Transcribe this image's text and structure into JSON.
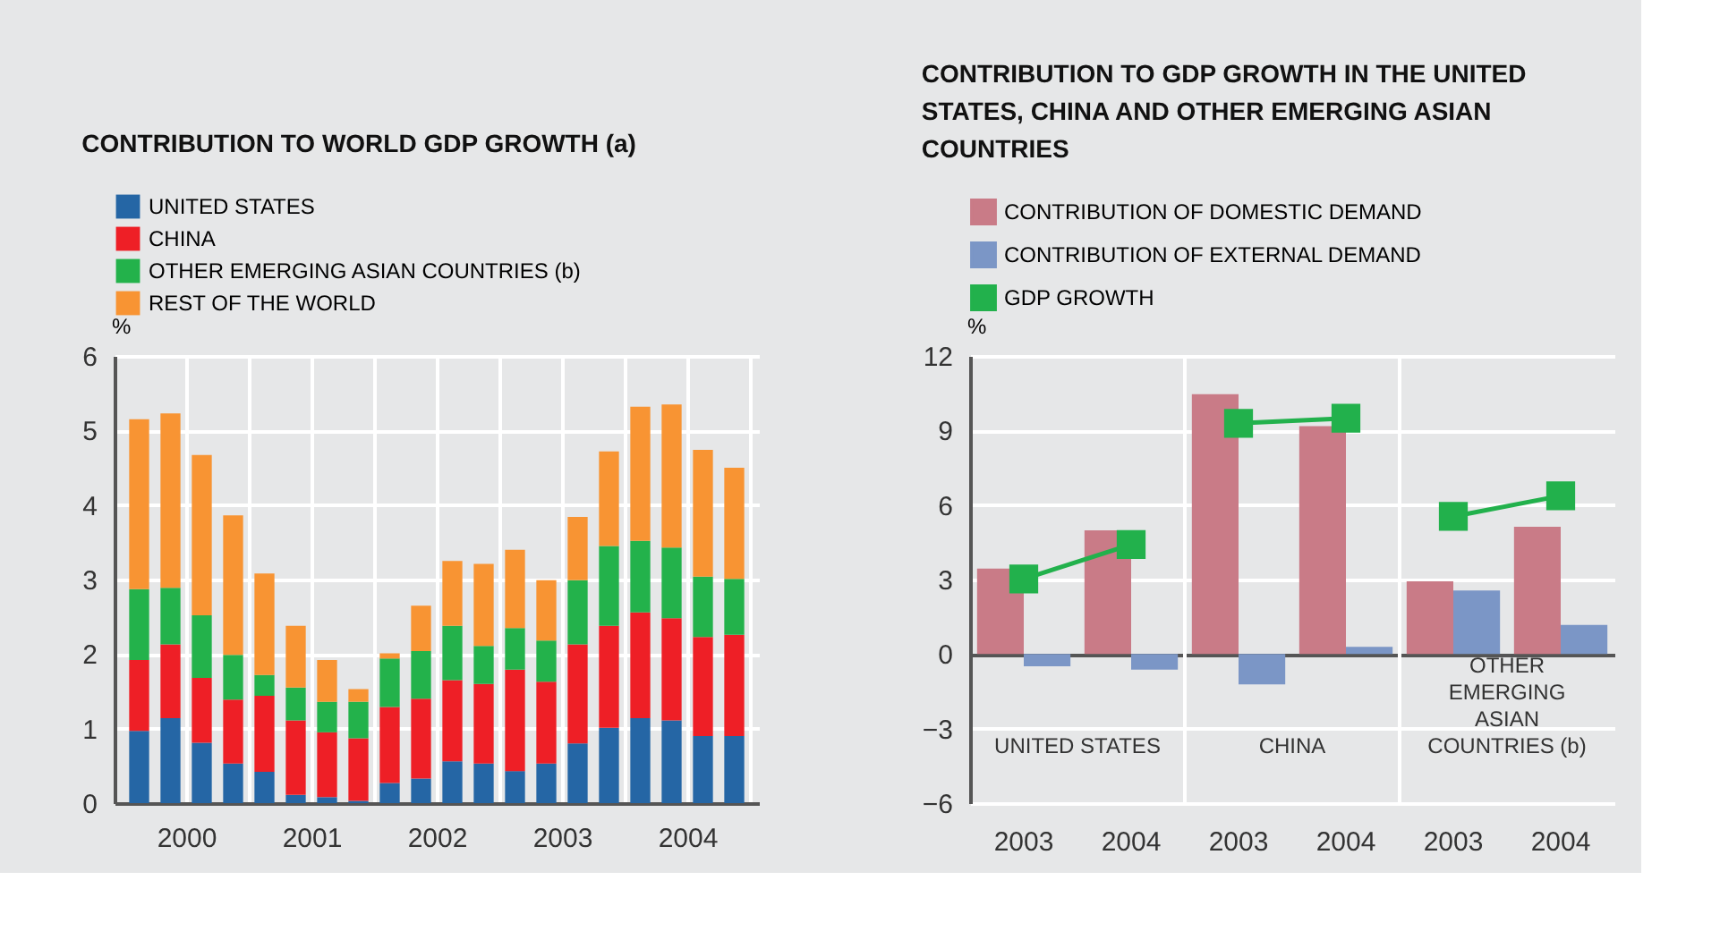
{
  "chart_data": [
    {
      "type": "bar",
      "stacked": true,
      "title": "CONTRIBUTION TO WORLD GDP GROWTH (a)",
      "ylabel": "%",
      "x": [
        2000.125,
        2000.375,
        2000.625,
        2000.875,
        2001.125,
        2001.375,
        2001.625,
        2001.875,
        2002.125,
        2002.375,
        2002.625,
        2002.875,
        2003.125,
        2003.375,
        2003.625,
        2003.875,
        2004.125,
        2004.375,
        2004.625,
        2004.875
      ],
      "series": [
        {
          "name": "UNITED STATES",
          "color": "#2566a5",
          "values": [
            0.97,
            1.14,
            0.81,
            0.53,
            0.42,
            0.11,
            0.08,
            0.03,
            0.27,
            0.33,
            0.56,
            0.53,
            0.43,
            0.53,
            0.8,
            1.01,
            1.14,
            1.11,
            0.9,
            0.9
          ]
        },
        {
          "name": "CHINA",
          "color": "#ee1f26",
          "values": [
            0.95,
            0.99,
            0.87,
            0.86,
            1.02,
            1.0,
            0.87,
            0.84,
            1.02,
            1.07,
            1.09,
            1.07,
            1.36,
            1.1,
            1.33,
            1.37,
            1.42,
            1.37,
            1.33,
            1.36
          ]
        },
        {
          "name": "OTHER EMERGING ASIAN COUNTRIES (b)",
          "color": "#23b24b",
          "values": [
            0.95,
            0.76,
            0.84,
            0.6,
            0.28,
            0.44,
            0.41,
            0.49,
            0.65,
            0.64,
            0.73,
            0.51,
            0.56,
            0.55,
            0.86,
            1.07,
            0.96,
            0.95,
            0.81,
            0.75
          ]
        },
        {
          "name": "REST OF THE WORLD",
          "color": "#f89433",
          "values": [
            2.28,
            2.34,
            2.15,
            1.87,
            1.36,
            0.83,
            0.56,
            0.17,
            0.07,
            0.61,
            0.87,
            1.1,
            1.05,
            0.81,
            0.85,
            1.27,
            1.8,
            1.92,
            1.7,
            1.49
          ]
        }
      ],
      "xlim": [
        2000,
        2005
      ],
      "xticks": [
        {
          "value": 2000.5,
          "label": "2000"
        },
        {
          "value": 2001,
          "label": null
        },
        {
          "value": 2001.5,
          "label": "2001"
        },
        {
          "value": 2002,
          "label": null
        },
        {
          "value": 2002.5,
          "label": "2002"
        },
        {
          "value": 2003,
          "label": null
        },
        {
          "value": 2003.5,
          "label": "2003"
        },
        {
          "value": 2004,
          "label": null
        },
        {
          "value": 2004.5,
          "label": "2004"
        },
        {
          "value": 2005,
          "label": null
        }
      ],
      "ylim": [
        0,
        6
      ],
      "yticks": [
        0,
        1,
        2,
        3,
        4,
        5,
        6
      ],
      "grid": true,
      "legend": "top left"
    },
    {
      "type": "bar",
      "title": "CONTRIBUTION TO GDP GROWTH IN THE UNITED STATES, CHINA AND OTHER EMERGING ASIAN COUNTRIES",
      "ylabel": "%",
      "categories": [
        "2003",
        "2004",
        "2003",
        "2004",
        "2003",
        "2004"
      ],
      "series": [
        {
          "name": "CONTRIBUTION OF DOMESTIC DEMAND",
          "color": "#c97b87",
          "values": [
            3.44,
            4.98,
            10.46,
            9.17,
            2.93,
            5.12
          ]
        },
        {
          "name": "CONTRIBUTION OF EXTERNAL DEMAND",
          "color": "#7b96c6",
          "values": [
            -0.49,
            -0.63,
            -1.22,
            0.29,
            2.56,
            1.17
          ]
        },
        {
          "name": "GDP GROWTH",
          "color": "#22b14c",
          "type": "line",
          "marker": "square",
          "line_style": "solid",
          "values": [
            3.02,
            4.41,
            9.29,
            9.49,
            5.54,
            6.37
          ]
        }
      ],
      "annotations": [
        "UNITED STATES",
        "CHINA",
        "OTHER EMERGING ASIAN COUNTRIES (b)"
      ],
      "ylim": [
        -6,
        12
      ],
      "yticks": [
        -6,
        -3,
        0,
        3,
        6,
        9,
        12
      ],
      "grid": "y",
      "legend": "top left"
    }
  ]
}
